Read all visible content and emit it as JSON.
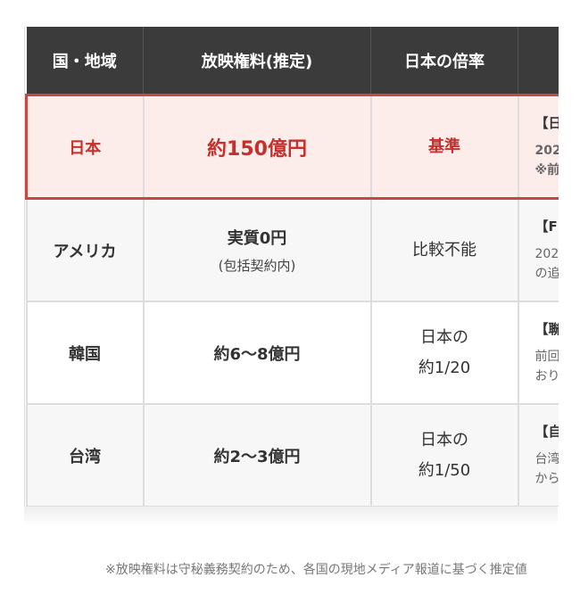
{
  "headers": [
    "国・地域",
    "放映権料(推定)",
    "日本の倍率",
    ""
  ],
  "rows": [
    {
      "country": "日本",
      "fee": "約150億円",
      "fee_sub": "",
      "ratio": [
        "基準"
      ],
      "note_title": "【日",
      "note_lines": [
        "202",
        "※前|"
      ]
    },
    {
      "country": "アメリカ",
      "fee": "実質0円",
      "fee_sub": "(包括契約内)",
      "ratio": [
        "比較不能"
      ],
      "note_title": "【F(",
      "note_lines": [
        "202",
        "の追"
      ]
    },
    {
      "country": "韓国",
      "fee": "約6〜8億円",
      "fee_sub": "",
      "ratio": [
        "日本の",
        "約1/20"
      ],
      "note_title": "【聯",
      "note_lines": [
        "前回",
        "おり"
      ]
    },
    {
      "country": "台湾",
      "fee": "約2〜3億円",
      "fee_sub": "",
      "ratio": [
        "日本の",
        "約1/50"
      ],
      "note_title": "【自",
      "note_lines": [
        "台湾",
        "から"
      ]
    }
  ],
  "footnote": "※放映権料は守秘義務契約のため、各国の現地メディア報道に基づく推定値",
  "colors": {
    "header_bg": "#3b3b3b",
    "highlight": "#c5302c",
    "highlight_bg": "#fcecea"
  }
}
